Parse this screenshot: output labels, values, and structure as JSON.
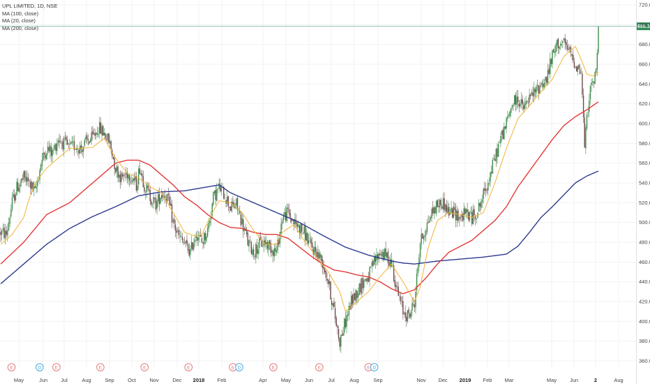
{
  "legend": {
    "title": "UPL LIMITED, 1D, NSE",
    "ma1": "MA (100, close)",
    "ma2": "MA (20, close)",
    "ma3": "MA (200, close)"
  },
  "colors": {
    "up": "#3d8a49",
    "down": "#6b4a4a",
    "ma20": "#f2b233",
    "ma100": "#e33939",
    "ma200": "#2e3a8f",
    "price_line": "#7fb8a8",
    "last_label_bg": "#2e8b57",
    "grid": "#f2f2f2",
    "earnings": "#e07070",
    "dividend": "#3aa0d8"
  },
  "chart_data": {
    "type": "candlestick",
    "title": "UPL LIMITED, 1D, NSE",
    "y_axis_position": "right",
    "ylim": [
      348,
      720
    ],
    "y_ticks": [
      "360.00",
      "380.00",
      "400.00",
      "420.00",
      "440.00",
      "460.00",
      "480.00",
      "500.00",
      "520.00",
      "540.00",
      "560.00",
      "580.00",
      "600.00",
      "620.00",
      "640.00",
      "660.00",
      "680.00",
      "700.00",
      "720.00"
    ],
    "x_ticks": [
      "May",
      "Jun",
      "Jul",
      "Aug",
      "Sep",
      "Oct",
      "Nov",
      "Dec",
      "2018",
      "Feb",
      "Apr",
      "May",
      "Jun",
      "Jul",
      "Aug",
      "Sep",
      "Nov",
      "Dec",
      "2019",
      "Feb",
      "Mar",
      "May",
      "Jun",
      "2",
      "Aug"
    ],
    "last_price": 698.35,
    "last_price_label": "698.35",
    "series": [
      {
        "name": "MA (20, close)",
        "key": "ma20"
      },
      {
        "name": "MA (100, close)",
        "key": "ma100"
      },
      {
        "name": "MA (200, close)",
        "key": "ma200"
      }
    ],
    "close_anchors": [
      [
        0,
        490
      ],
      [
        5,
        488
      ],
      [
        10,
        520
      ],
      [
        14,
        535
      ],
      [
        20,
        545
      ],
      [
        25,
        540
      ],
      [
        30,
        530
      ],
      [
        35,
        560
      ],
      [
        40,
        575
      ],
      [
        45,
        570
      ],
      [
        50,
        585
      ],
      [
        55,
        580
      ],
      [
        60,
        575
      ],
      [
        65,
        578
      ],
      [
        70,
        575
      ],
      [
        75,
        582
      ],
      [
        80,
        585
      ],
      [
        85,
        596
      ],
      [
        90,
        590
      ],
      [
        95,
        580
      ],
      [
        100,
        555
      ],
      [
        105,
        545
      ],
      [
        110,
        550
      ],
      [
        115,
        545
      ],
      [
        118,
        538
      ],
      [
        121,
        556
      ],
      [
        125,
        538
      ],
      [
        130,
        526
      ],
      [
        135,
        518
      ],
      [
        140,
        530
      ],
      [
        145,
        526
      ],
      [
        150,
        500
      ],
      [
        155,
        485
      ],
      [
        160,
        478
      ],
      [
        165,
        470
      ],
      [
        170,
        490
      ],
      [
        175,
        480
      ],
      [
        180,
        492
      ],
      [
        185,
        525
      ],
      [
        190,
        535
      ],
      [
        195,
        528
      ],
      [
        200,
        515
      ],
      [
        205,
        518
      ],
      [
        210,
        500
      ],
      [
        215,
        480
      ],
      [
        220,
        470
      ],
      [
        225,
        478
      ],
      [
        230,
        480
      ],
      [
        235,
        475
      ],
      [
        240,
        470
      ],
      [
        245,
        505
      ],
      [
        250,
        510
      ],
      [
        255,
        500
      ],
      [
        260,
        495
      ],
      [
        265,
        488
      ],
      [
        270,
        475
      ],
      [
        275,
        470
      ],
      [
        280,
        460
      ],
      [
        285,
        440
      ],
      [
        290,
        410
      ],
      [
        295,
        380
      ],
      [
        300,
        400
      ],
      [
        305,
        420
      ],
      [
        310,
        430
      ],
      [
        315,
        440
      ],
      [
        320,
        445
      ],
      [
        325,
        460
      ],
      [
        330,
        470
      ],
      [
        335,
        466
      ],
      [
        340,
        460
      ],
      [
        345,
        430
      ],
      [
        350,
        410
      ],
      [
        355,
        405
      ],
      [
        360,
        420
      ],
      [
        365,
        480
      ],
      [
        370,
        495
      ],
      [
        375,
        510
      ],
      [
        380,
        518
      ],
      [
        385,
        520
      ],
      [
        390,
        510
      ],
      [
        395,
        510
      ],
      [
        400,
        505
      ],
      [
        405,
        510
      ],
      [
        410,
        505
      ],
      [
        415,
        512
      ],
      [
        420,
        528
      ],
      [
        425,
        545
      ],
      [
        430,
        565
      ],
      [
        435,
        585
      ],
      [
        440,
        600
      ],
      [
        445,
        620
      ],
      [
        450,
        625
      ],
      [
        455,
        615
      ],
      [
        460,
        625
      ],
      [
        465,
        632
      ],
      [
        470,
        640
      ],
      [
        475,
        645
      ],
      [
        480,
        668
      ],
      [
        485,
        682
      ],
      [
        490,
        680
      ],
      [
        495,
        672
      ],
      [
        500,
        660
      ],
      [
        505,
        652
      ],
      [
        508,
        578
      ],
      [
        512,
        630
      ],
      [
        515,
        640
      ],
      [
        518,
        652
      ],
      [
        520,
        694
      ]
    ],
    "ma20_anchors": [
      [
        0,
        478
      ],
      [
        10,
        488
      ],
      [
        20,
        505
      ],
      [
        25,
        525
      ],
      [
        30,
        540
      ],
      [
        40,
        555
      ],
      [
        50,
        565
      ],
      [
        60,
        575
      ],
      [
        70,
        575
      ],
      [
        80,
        576
      ],
      [
        90,
        585
      ],
      [
        95,
        575
      ],
      [
        100,
        565
      ],
      [
        110,
        550
      ],
      [
        120,
        545
      ],
      [
        130,
        536
      ],
      [
        140,
        530
      ],
      [
        150,
        510
      ],
      [
        160,
        490
      ],
      [
        170,
        486
      ],
      [
        175,
        488
      ],
      [
        182,
        505
      ],
      [
        190,
        522
      ],
      [
        200,
        520
      ],
      [
        210,
        510
      ],
      [
        220,
        492
      ],
      [
        230,
        478
      ],
      [
        240,
        478
      ],
      [
        245,
        490
      ],
      [
        255,
        498
      ],
      [
        265,
        480
      ],
      [
        275,
        465
      ],
      [
        285,
        450
      ],
      [
        295,
        430
      ],
      [
        300,
        410
      ],
      [
        310,
        420
      ],
      [
        320,
        430
      ],
      [
        330,
        445
      ],
      [
        340,
        458
      ],
      [
        350,
        440
      ],
      [
        360,
        420
      ],
      [
        365,
        435
      ],
      [
        372,
        475
      ],
      [
        380,
        502
      ],
      [
        390,
        510
      ],
      [
        400,
        508
      ],
      [
        410,
        505
      ],
      [
        420,
        510
      ],
      [
        430,
        540
      ],
      [
        440,
        575
      ],
      [
        450,
        605
      ],
      [
        460,
        618
      ],
      [
        470,
        632
      ],
      [
        480,
        645
      ],
      [
        490,
        668
      ],
      [
        500,
        678
      ],
      [
        505,
        665
      ],
      [
        510,
        650
      ],
      [
        515,
        648
      ],
      [
        520,
        652
      ]
    ],
    "ma100_anchors": [
      [
        0,
        458
      ],
      [
        20,
        480
      ],
      [
        40,
        508
      ],
      [
        60,
        520
      ],
      [
        80,
        540
      ],
      [
        100,
        560
      ],
      [
        110,
        563
      ],
      [
        120,
        563
      ],
      [
        130,
        558
      ],
      [
        140,
        548
      ],
      [
        150,
        538
      ],
      [
        160,
        526
      ],
      [
        170,
        518
      ],
      [
        180,
        508
      ],
      [
        190,
        500
      ],
      [
        200,
        495
      ],
      [
        210,
        494
      ],
      [
        220,
        490
      ],
      [
        230,
        488
      ],
      [
        240,
        488
      ],
      [
        250,
        484
      ],
      [
        260,
        475
      ],
      [
        270,
        466
      ],
      [
        280,
        458
      ],
      [
        290,
        452
      ],
      [
        300,
        450
      ],
      [
        310,
        447
      ],
      [
        320,
        445
      ],
      [
        330,
        440
      ],
      [
        340,
        433
      ],
      [
        350,
        428
      ],
      [
        360,
        432
      ],
      [
        370,
        444
      ],
      [
        380,
        458
      ],
      [
        390,
        470
      ],
      [
        400,
        476
      ],
      [
        410,
        482
      ],
      [
        420,
        492
      ],
      [
        430,
        502
      ],
      [
        440,
        516
      ],
      [
        450,
        536
      ],
      [
        460,
        552
      ],
      [
        470,
        568
      ],
      [
        480,
        584
      ],
      [
        490,
        598
      ],
      [
        500,
        607
      ],
      [
        510,
        614
      ],
      [
        520,
        622
      ]
    ],
    "ma200_anchors": [
      [
        0,
        438
      ],
      [
        20,
        458
      ],
      [
        40,
        478
      ],
      [
        60,
        494
      ],
      [
        80,
        506
      ],
      [
        100,
        516
      ],
      [
        120,
        527
      ],
      [
        140,
        531
      ],
      [
        160,
        532
      ],
      [
        180,
        536
      ],
      [
        190,
        538
      ],
      [
        200,
        530
      ],
      [
        220,
        520
      ],
      [
        240,
        510
      ],
      [
        260,
        500
      ],
      [
        280,
        487
      ],
      [
        300,
        475
      ],
      [
        320,
        467
      ],
      [
        340,
        461
      ],
      [
        350,
        459
      ],
      [
        360,
        458
      ],
      [
        380,
        461
      ],
      [
        400,
        463
      ],
      [
        420,
        465
      ],
      [
        440,
        468
      ],
      [
        450,
        476
      ],
      [
        460,
        490
      ],
      [
        470,
        505
      ],
      [
        480,
        516
      ],
      [
        490,
        528
      ],
      [
        500,
        540
      ],
      [
        510,
        547
      ],
      [
        520,
        552
      ]
    ],
    "events": [
      {
        "letter": "E",
        "type": "earnings",
        "x_frac": 0.043
      },
      {
        "letter": "D",
        "type": "dividend",
        "x_frac": 0.155
      },
      {
        "letter": "E",
        "type": "earnings",
        "x_frac": 0.222
      },
      {
        "letter": "E",
        "type": "earnings",
        "x_frac": 0.397
      },
      {
        "letter": "E",
        "type": "earnings",
        "x_frac": 0.573
      },
      {
        "letter": "E",
        "type": "earnings",
        "x_frac": 0.748
      },
      {
        "letter": "E",
        "type": "earnings",
        "x_frac": 0.925
      },
      {
        "letter": "D",
        "type": "dividend",
        "x_frac": 0.95
      },
      {
        "letter": "E",
        "type": "earnings",
        "x_frac": 1.086
      },
      {
        "letter": "E",
        "type": "earnings",
        "x_frac": 1.269
      },
      {
        "letter": "E",
        "type": "earnings",
        "x_frac": 1.465
      },
      {
        "letter": "D",
        "type": "dividend",
        "x_frac": 1.488
      }
    ]
  }
}
